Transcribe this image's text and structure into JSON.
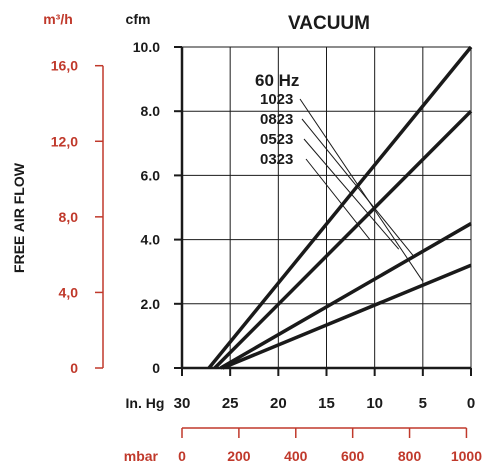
{
  "chart_data": {
    "type": "line",
    "title": "VACUUM",
    "ylabel": "FREE AIR FLOW",
    "colors": {
      "primary": "#1a1a1a",
      "secondary": "#c0392b"
    },
    "y_axis_left": {
      "unit": "m³/h",
      "ticks": [
        "0",
        "4,0",
        "8,0",
        "12,0",
        "16,0"
      ],
      "tick_values": [
        0,
        4,
        8,
        12,
        16
      ]
    },
    "y_axis_right": {
      "unit": "cfm",
      "ticks": [
        "0",
        "2.0",
        "4.0",
        "6.0",
        "8.0",
        "10.0"
      ],
      "tick_values": [
        0,
        2,
        4,
        6,
        8,
        10
      ],
      "ylim": [
        0,
        10
      ]
    },
    "x_axis_inhg": {
      "unit": "In. Hg",
      "ticks": [
        "30",
        "25",
        "20",
        "15",
        "10",
        "5",
        "0"
      ],
      "tick_values": [
        30,
        25,
        20,
        15,
        10,
        5,
        0
      ],
      "xlim": [
        30,
        0
      ]
    },
    "x_axis_mbar": {
      "unit": "mbar",
      "ticks": [
        "0",
        "200",
        "400",
        "600",
        "800",
        "1000"
      ],
      "tick_values": [
        0,
        200,
        400,
        600,
        800,
        1000
      ]
    },
    "legend_header": "60 Hz",
    "series": [
      {
        "name": "1023",
        "x": [
          27.2,
          0
        ],
        "y": [
          0,
          10.0
        ]
      },
      {
        "name": "0823",
        "x": [
          26.6,
          0
        ],
        "y": [
          0,
          8.0
        ]
      },
      {
        "name": "0523",
        "x": [
          26.0,
          0
        ],
        "y": [
          0,
          4.5
        ]
      },
      {
        "name": "0323",
        "x": [
          25.8,
          0
        ],
        "y": [
          0,
          3.2
        ]
      }
    ],
    "callout_targets": [
      {
        "name": "1023",
        "x": 5.0,
        "y": 2.7
      },
      {
        "name": "0823",
        "x": 6.0,
        "y": 3.5
      },
      {
        "name": "0523",
        "x": 7.5,
        "y": 3.7
      },
      {
        "name": "0323",
        "x": 10.5,
        "y": 4.0
      }
    ]
  }
}
